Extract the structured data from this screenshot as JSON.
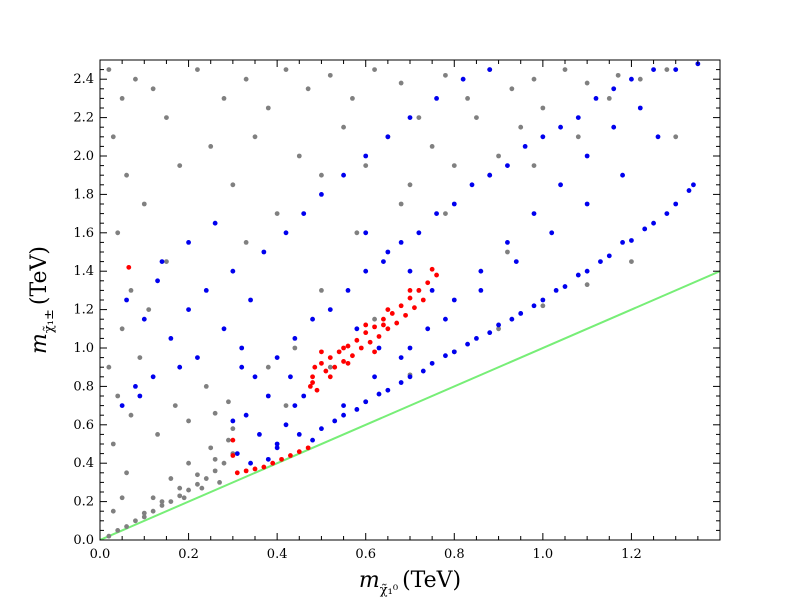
{
  "chart_data": {
    "type": "scatter",
    "xlabel": {
      "symbol": "m",
      "subscript": "χ̃₁⁰",
      "unit": "(TeV)"
    },
    "ylabel": {
      "symbol": "m",
      "subscript": "χ̃₁±",
      "unit": "(TeV)"
    },
    "xlim": [
      0.0,
      1.4
    ],
    "ylim": [
      0.0,
      2.5
    ],
    "x_ticks": [
      0.0,
      0.2,
      0.4,
      0.6,
      0.8,
      1.0,
      1.2
    ],
    "x_tick_labels": [
      "0.0",
      "0.2",
      "0.4",
      "0.6",
      "0.8",
      "1.0",
      "1.2"
    ],
    "y_ticks": [
      0.0,
      0.2,
      0.4,
      0.6,
      0.8,
      1.0,
      1.2,
      1.4,
      1.6,
      1.8,
      2.0,
      2.2,
      2.4
    ],
    "y_tick_labels": [
      "0.0",
      "0.2",
      "0.4",
      "0.6",
      "0.8",
      "1.0",
      "1.2",
      "1.4",
      "1.6",
      "1.8",
      "2.0",
      "2.2",
      "2.4"
    ],
    "grid": false,
    "legend": "none",
    "colors": {
      "gray": "#808080",
      "blue": "#0000ee",
      "red": "#ff0000",
      "green": "#77ee77"
    },
    "lines": [
      {
        "kind": "y_equals_x",
        "color": "#77ee77",
        "x": [
          0.0,
          1.4
        ],
        "y": [
          0.0,
          1.4
        ]
      }
    ],
    "series": [
      {
        "color": "#808080",
        "points": [
          [
            0.02,
            2.45
          ],
          [
            0.05,
            2.3
          ],
          [
            0.08,
            2.4
          ],
          [
            0.03,
            2.1
          ],
          [
            0.12,
            2.35
          ],
          [
            0.15,
            2.2
          ],
          [
            0.22,
            2.45
          ],
          [
            0.28,
            2.3
          ],
          [
            0.33,
            2.4
          ],
          [
            0.38,
            2.25
          ],
          [
            0.42,
            2.45
          ],
          [
            0.47,
            2.35
          ],
          [
            0.52,
            2.42
          ],
          [
            0.57,
            2.3
          ],
          [
            0.62,
            2.45
          ],
          [
            0.68,
            2.38
          ],
          [
            0.72,
            2.2
          ],
          [
            0.78,
            2.42
          ],
          [
            0.83,
            2.3
          ],
          [
            0.88,
            2.45
          ],
          [
            0.93,
            2.35
          ],
          [
            0.98,
            2.4
          ],
          [
            1.05,
            2.45
          ],
          [
            1.1,
            2.38
          ],
          [
            1.17,
            2.42
          ],
          [
            0.06,
            1.9
          ],
          [
            0.1,
            1.75
          ],
          [
            0.04,
            1.6
          ],
          [
            0.18,
            1.95
          ],
          [
            0.25,
            2.05
          ],
          [
            0.3,
            1.85
          ],
          [
            0.35,
            2.1
          ],
          [
            0.45,
            2.0
          ],
          [
            0.5,
            1.9
          ],
          [
            0.55,
            2.15
          ],
          [
            0.6,
            1.95
          ],
          [
            0.65,
            2.1
          ],
          [
            0.7,
            1.85
          ],
          [
            0.75,
            2.05
          ],
          [
            0.8,
            1.95
          ],
          [
            0.85,
            2.2
          ],
          [
            0.9,
            2.0
          ],
          [
            0.95,
            2.15
          ],
          [
            1.0,
            2.25
          ],
          [
            0.07,
            1.3
          ],
          [
            0.05,
            1.1
          ],
          [
            0.09,
            0.95
          ],
          [
            0.04,
            0.75
          ],
          [
            0.07,
            0.65
          ],
          [
            0.03,
            0.5
          ],
          [
            0.06,
            0.35
          ],
          [
            0.02,
            0.9
          ],
          [
            0.13,
            0.55
          ],
          [
            0.17,
            0.7
          ],
          [
            0.2,
            0.62
          ],
          [
            0.24,
            0.8
          ],
          [
            0.29,
            0.72
          ],
          [
            0.26,
            0.66
          ],
          [
            0.15,
            1.45
          ],
          [
            0.11,
            1.2
          ],
          [
            0.33,
            1.55
          ],
          [
            0.4,
            1.7
          ],
          [
            0.58,
            1.6
          ],
          [
            0.68,
            1.75
          ],
          [
            0.78,
            1.7
          ],
          [
            0.88,
            1.9
          ],
          [
            0.98,
            1.95
          ],
          [
            1.08,
            2.1
          ],
          [
            1.15,
            2.3
          ],
          [
            1.22,
            2.4
          ],
          [
            1.28,
            2.45
          ],
          [
            0.02,
            0.02
          ],
          [
            0.04,
            0.05
          ],
          [
            0.06,
            0.07
          ],
          [
            0.08,
            0.1
          ],
          [
            0.1,
            0.12
          ],
          [
            0.12,
            0.15
          ],
          [
            0.14,
            0.18
          ],
          [
            0.16,
            0.2
          ],
          [
            0.18,
            0.23
          ],
          [
            0.2,
            0.26
          ],
          [
            0.22,
            0.29
          ],
          [
            0.24,
            0.32
          ],
          [
            0.26,
            0.36
          ],
          [
            0.28,
            0.4
          ],
          [
            0.3,
            0.45
          ],
          [
            0.1,
            0.14
          ],
          [
            0.14,
            0.2
          ],
          [
            0.18,
            0.27
          ],
          [
            0.22,
            0.34
          ],
          [
            0.26,
            0.42
          ],
          [
            0.29,
            0.52
          ],
          [
            0.3,
            0.58
          ],
          [
            0.25,
            0.48
          ],
          [
            0.2,
            0.4
          ],
          [
            0.16,
            0.32
          ],
          [
            0.12,
            0.22
          ],
          [
            0.27,
            0.3
          ],
          [
            0.23,
            0.27
          ],
          [
            0.19,
            0.22
          ],
          [
            0.05,
            0.22
          ],
          [
            0.03,
            0.15
          ],
          [
            0.6,
            0.72
          ],
          [
            0.7,
            0.86
          ],
          [
            0.8,
            0.98
          ],
          [
            0.9,
            1.1
          ],
          [
            1.0,
            1.22
          ],
          [
            1.1,
            1.33
          ],
          [
            1.2,
            1.45
          ],
          [
            1.3,
            2.1
          ],
          [
            0.92,
            1.5
          ],
          [
            0.72,
            1.3
          ],
          [
            0.62,
            1.15
          ],
          [
            0.52,
            0.9
          ],
          [
            0.42,
            0.7
          ],
          [
            0.5,
            1.3
          ],
          [
            0.44,
            1.0
          ],
          [
            0.38,
            0.9
          ]
        ]
      },
      {
        "color": "#0000ee",
        "points": [
          [
            0.06,
            1.25
          ],
          [
            0.1,
            1.15
          ],
          [
            0.13,
            1.35
          ],
          [
            0.16,
            1.05
          ],
          [
            0.2,
            1.2
          ],
          [
            0.24,
            1.3
          ],
          [
            0.18,
            0.9
          ],
          [
            0.22,
            0.95
          ],
          [
            0.12,
            0.85
          ],
          [
            0.09,
            0.75
          ],
          [
            0.14,
            1.45
          ],
          [
            0.2,
            1.55
          ],
          [
            0.26,
            1.65
          ],
          [
            0.3,
            1.4
          ],
          [
            0.34,
            1.25
          ],
          [
            0.37,
            1.5
          ],
          [
            0.42,
            1.6
          ],
          [
            0.46,
            1.7
          ],
          [
            0.5,
            1.8
          ],
          [
            0.55,
            1.9
          ],
          [
            0.6,
            2.0
          ],
          [
            0.65,
            2.1
          ],
          [
            0.7,
            2.2
          ],
          [
            0.76,
            2.3
          ],
          [
            0.82,
            2.4
          ],
          [
            0.88,
            2.45
          ],
          [
            0.28,
            1.1
          ],
          [
            0.32,
            1.0
          ],
          [
            0.35,
            0.85
          ],
          [
            0.38,
            0.75
          ],
          [
            0.33,
            0.65
          ],
          [
            0.36,
            0.55
          ],
          [
            0.31,
            0.45
          ],
          [
            0.34,
            0.4
          ],
          [
            0.38,
            0.42
          ],
          [
            0.4,
            0.5
          ],
          [
            0.42,
            0.6
          ],
          [
            0.44,
            0.7
          ],
          [
            0.46,
            0.75
          ],
          [
            0.4,
            0.95
          ],
          [
            0.44,
            1.05
          ],
          [
            0.48,
            1.15
          ],
          [
            0.52,
            1.2
          ],
          [
            0.56,
            1.3
          ],
          [
            0.6,
            1.4
          ],
          [
            0.64,
            1.45
          ],
          [
            0.68,
            1.55
          ],
          [
            0.72,
            1.6
          ],
          [
            0.76,
            1.7
          ],
          [
            0.8,
            1.75
          ],
          [
            0.84,
            1.85
          ],
          [
            0.88,
            1.9
          ],
          [
            0.92,
            1.95
          ],
          [
            0.96,
            2.05
          ],
          [
            1.0,
            2.1
          ],
          [
            1.04,
            2.15
          ],
          [
            1.08,
            2.2
          ],
          [
            1.12,
            2.3
          ],
          [
            1.16,
            2.35
          ],
          [
            1.2,
            2.4
          ],
          [
            1.25,
            2.45
          ],
          [
            1.3,
            2.45
          ],
          [
            0.5,
            0.58
          ],
          [
            0.55,
            0.65
          ],
          [
            0.6,
            0.72
          ],
          [
            0.65,
            0.78
          ],
          [
            0.7,
            0.85
          ],
          [
            0.75,
            0.92
          ],
          [
            0.8,
            0.98
          ],
          [
            0.85,
            1.05
          ],
          [
            0.9,
            1.12
          ],
          [
            0.95,
            1.18
          ],
          [
            1.0,
            1.25
          ],
          [
            1.05,
            1.32
          ],
          [
            1.1,
            1.4
          ],
          [
            1.15,
            1.48
          ],
          [
            1.2,
            1.56
          ],
          [
            1.25,
            1.65
          ],
          [
            1.3,
            1.75
          ],
          [
            1.34,
            1.85
          ],
          [
            1.35,
            2.48
          ],
          [
            0.55,
            0.7
          ],
          [
            0.62,
            0.85
          ],
          [
            0.7,
            1.0
          ],
          [
            0.78,
            1.15
          ],
          [
            0.86,
            1.3
          ],
          [
            0.94,
            1.45
          ],
          [
            1.02,
            1.6
          ],
          [
            1.1,
            1.75
          ],
          [
            1.18,
            1.9
          ],
          [
            1.26,
            2.1
          ],
          [
            0.4,
            0.48
          ],
          [
            0.45,
            0.55
          ],
          [
            0.48,
            0.52
          ],
          [
            0.53,
            0.62
          ],
          [
            0.58,
            0.68
          ],
          [
            0.63,
            0.76
          ],
          [
            0.68,
            0.82
          ],
          [
            0.73,
            0.88
          ],
          [
            0.78,
            0.96
          ],
          [
            0.83,
            1.02
          ],
          [
            0.88,
            1.08
          ],
          [
            0.93,
            1.15
          ],
          [
            0.98,
            1.22
          ],
          [
            1.03,
            1.3
          ],
          [
            1.08,
            1.38
          ],
          [
            1.13,
            1.45
          ],
          [
            1.18,
            1.55
          ],
          [
            1.23,
            1.62
          ],
          [
            1.28,
            1.7
          ],
          [
            1.33,
            1.82
          ],
          [
            0.6,
            1.6
          ],
          [
            0.65,
            1.5
          ],
          [
            0.7,
            1.4
          ],
          [
            0.75,
            1.3
          ],
          [
            0.58,
            1.1
          ],
          [
            0.63,
            1.0
          ],
          [
            0.68,
            0.95
          ],
          [
            0.74,
            1.1
          ],
          [
            0.8,
            1.25
          ],
          [
            0.86,
            1.4
          ],
          [
            0.92,
            1.55
          ],
          [
            0.98,
            1.7
          ],
          [
            1.04,
            1.85
          ],
          [
            1.1,
            2.0
          ],
          [
            1.16,
            2.15
          ],
          [
            1.22,
            2.25
          ],
          [
            0.08,
            0.8
          ],
          [
            0.05,
            0.7
          ],
          [
            0.3,
            0.62
          ],
          [
            0.32,
            0.9
          ],
          [
            0.43,
            0.85
          ]
        ]
      },
      {
        "color": "#ff0000",
        "points": [
          [
            0.065,
            1.42
          ],
          [
            0.31,
            0.35
          ],
          [
            0.33,
            0.36
          ],
          [
            0.35,
            0.37
          ],
          [
            0.37,
            0.38
          ],
          [
            0.39,
            0.4
          ],
          [
            0.41,
            0.42
          ],
          [
            0.43,
            0.44
          ],
          [
            0.45,
            0.46
          ],
          [
            0.47,
            0.48
          ],
          [
            0.3,
            0.44
          ],
          [
            0.475,
            0.8
          ],
          [
            0.48,
            0.85
          ],
          [
            0.485,
            0.9
          ],
          [
            0.5,
            0.92
          ],
          [
            0.52,
            0.95
          ],
          [
            0.54,
            0.98
          ],
          [
            0.56,
            1.01
          ],
          [
            0.58,
            1.04
          ],
          [
            0.6,
            1.08
          ],
          [
            0.62,
            1.11
          ],
          [
            0.64,
            1.15
          ],
          [
            0.66,
            1.18
          ],
          [
            0.68,
            1.22
          ],
          [
            0.7,
            1.26
          ],
          [
            0.72,
            1.3
          ],
          [
            0.74,
            1.34
          ],
          [
            0.76,
            1.38
          ],
          [
            0.75,
            1.41
          ],
          [
            0.51,
            0.88
          ],
          [
            0.53,
            0.9
          ],
          [
            0.55,
            0.93
          ],
          [
            0.57,
            0.96
          ],
          [
            0.59,
            1.0
          ],
          [
            0.61,
            1.03
          ],
          [
            0.63,
            1.06
          ],
          [
            0.65,
            1.1
          ],
          [
            0.67,
            1.13
          ],
          [
            0.69,
            1.17
          ],
          [
            0.71,
            1.21
          ],
          [
            0.73,
            1.25
          ],
          [
            0.55,
            1.0
          ],
          [
            0.6,
            1.12
          ],
          [
            0.65,
            1.2
          ],
          [
            0.7,
            1.3
          ],
          [
            0.62,
            0.98
          ],
          [
            0.5,
            0.98
          ],
          [
            0.48,
            0.82
          ],
          [
            0.49,
            0.78
          ],
          [
            0.52,
            0.85
          ],
          [
            0.64,
            1.12
          ],
          [
            0.56,
            0.92
          ],
          [
            0.3,
            0.52
          ]
        ]
      }
    ]
  }
}
